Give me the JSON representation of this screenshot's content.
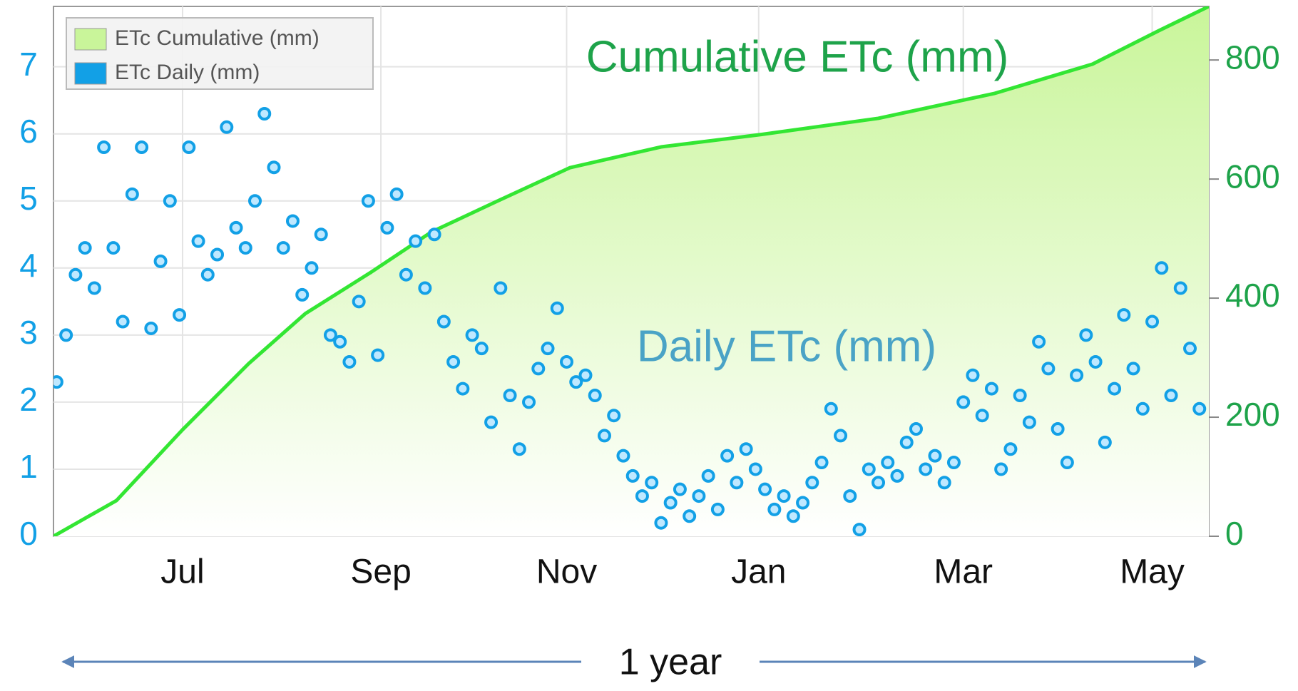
{
  "chart_data": {
    "type": "scatter",
    "annotations": [
      "Cumulative ETc (mm)",
      "Daily ETc (mm)",
      "1 year"
    ],
    "xlim": [
      0,
      367
    ],
    "xticks": [
      {
        "value": 41,
        "label": "Jul"
      },
      {
        "value": 104,
        "label": "Sep"
      },
      {
        "value": 163,
        "label": "Nov"
      },
      {
        "value": 224,
        "label": "Jan"
      },
      {
        "value": 289,
        "label": "Mar"
      },
      {
        "value": 349,
        "label": "May"
      }
    ],
    "ylim": [
      0,
      7.9
    ],
    "yticks": [
      0,
      1,
      2,
      3,
      4,
      5,
      6,
      7
    ],
    "y2lim": [
      0,
      890
    ],
    "y2ticks": [
      0,
      200,
      400,
      600,
      800
    ],
    "grid": true,
    "legend": "upper left",
    "series": [
      {
        "name": "ETc Cumulative (mm)",
        "type": "area",
        "axis": "y2",
        "color": "#33e633",
        "x": [
          0,
          20,
          41,
          62,
          80,
          101,
          120,
          141,
          164,
          193,
          225,
          262,
          299,
          330,
          351,
          367
        ],
        "values": [
          0,
          60,
          179,
          290,
          374,
          444,
          511,
          563,
          619,
          654,
          675,
          702,
          744,
          793,
          849,
          890
        ]
      },
      {
        "name": "ETc Daily (mm)",
        "type": "scatter",
        "color": "#12a0e6",
        "x": [
          1,
          4,
          7,
          10,
          13,
          16,
          19,
          22,
          25,
          28,
          31,
          34,
          37,
          40,
          43,
          46,
          49,
          52,
          55,
          58,
          61,
          64,
          67,
          70,
          73,
          76,
          79,
          82,
          85,
          88,
          91,
          94,
          97,
          100,
          103,
          106,
          109,
          112,
          115,
          118,
          121,
          124,
          127,
          130,
          133,
          136,
          139,
          142,
          145,
          148,
          151,
          154,
          157,
          160,
          163,
          166,
          169,
          172,
          175,
          178,
          181,
          184,
          187,
          190,
          193,
          196,
          199,
          202,
          205,
          208,
          211,
          214,
          217,
          220,
          223,
          226,
          229,
          232,
          235,
          238,
          241,
          244,
          247,
          250,
          253,
          256,
          259,
          262,
          265,
          268,
          271,
          274,
          277,
          280,
          283,
          286,
          289,
          292,
          295,
          298,
          301,
          304,
          307,
          310,
          313,
          316,
          319,
          322,
          325,
          328,
          331,
          334,
          337,
          340,
          343,
          346,
          349,
          352,
          355,
          358,
          361,
          364
        ],
        "values": [
          2.3,
          3.0,
          3.9,
          4.3,
          3.7,
          5.8,
          4.3,
          3.2,
          5.1,
          5.8,
          3.1,
          4.1,
          5.0,
          3.3,
          5.8,
          4.4,
          3.9,
          4.2,
          6.1,
          4.6,
          4.3,
          5.0,
          6.3,
          5.5,
          4.3,
          4.7,
          3.6,
          4.0,
          4.5,
          3.0,
          2.9,
          2.6,
          3.5,
          5.0,
          2.7,
          4.6,
          5.1,
          3.9,
          4.4,
          3.7,
          4.5,
          3.2,
          2.6,
          2.2,
          3.0,
          2.8,
          1.7,
          3.7,
          2.1,
          1.3,
          2.0,
          2.5,
          2.8,
          3.4,
          2.6,
          2.3,
          2.4,
          2.1,
          1.5,
          1.8,
          1.2,
          0.9,
          0.6,
          0.8,
          0.2,
          0.5,
          0.7,
          0.3,
          0.6,
          0.9,
          0.4,
          1.2,
          0.8,
          1.3,
          1.0,
          0.7,
          0.4,
          0.6,
          0.3,
          0.5,
          0.8,
          1.1,
          1.9,
          1.5,
          0.6,
          0.1,
          1.0,
          0.8,
          1.1,
          0.9,
          1.4,
          1.6,
          1.0,
          1.2,
          0.8,
          1.1,
          2.0,
          2.4,
          1.8,
          2.2,
          1.0,
          1.3,
          2.1,
          1.7,
          2.9,
          2.5,
          1.6,
          1.1,
          2.4,
          3.0,
          2.6,
          1.4,
          2.2,
          3.3,
          2.5,
          1.9,
          3.2,
          4.0,
          2.1,
          3.7,
          2.8,
          1.9
        ]
      }
    ]
  }
}
